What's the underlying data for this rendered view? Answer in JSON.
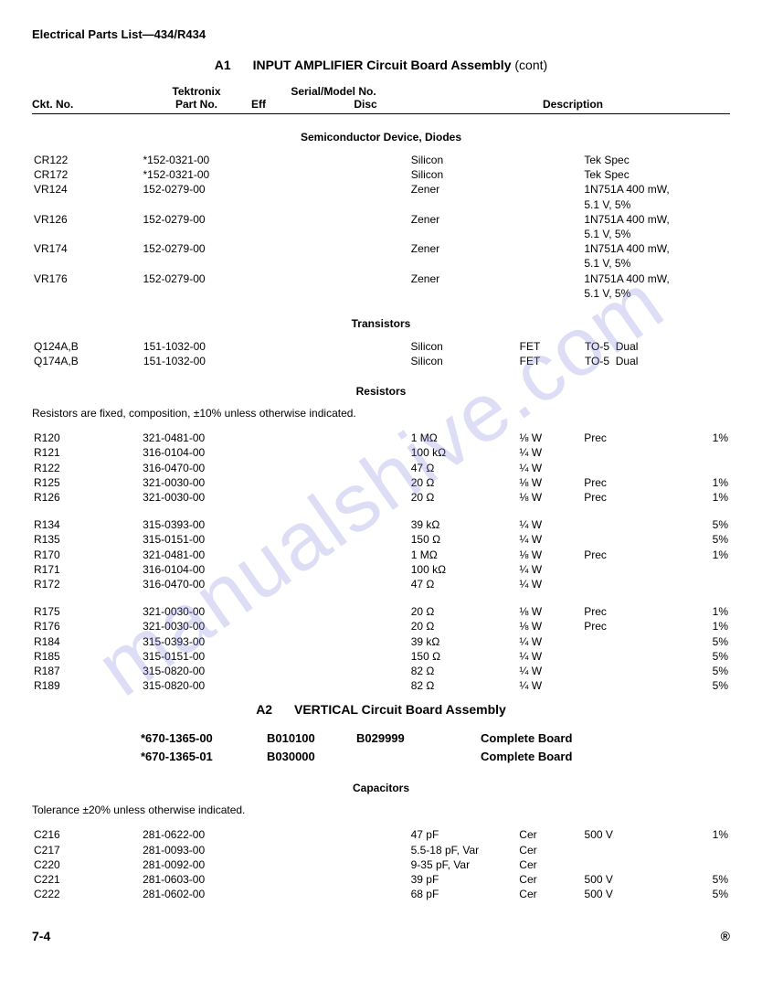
{
  "header": "Electrical Parts List—434/R434",
  "a1": {
    "code": "A1",
    "title": "INPUT AMPLIFIER Circuit Board Assembly",
    "suffix": "(cont)"
  },
  "colHeaders": {
    "ckt": "Ckt. No.",
    "partTop": "Tektronix",
    "partBot": "Part No.",
    "serialTop": "Serial/Model No.",
    "eff": "Eff",
    "disc": "Disc",
    "desc": "Description"
  },
  "sections": {
    "diodes": {
      "title": "Semiconductor Device, Diodes",
      "rows": [
        {
          "ckt": "CR122",
          "part": "*152-0321-00",
          "c3": "Silicon",
          "c4": "",
          "c5": "Tek Spec",
          "c6": ""
        },
        {
          "ckt": "CR172",
          "part": "*152-0321-00",
          "c3": "Silicon",
          "c4": "",
          "c5": "Tek Spec",
          "c6": ""
        },
        {
          "ckt": "VR124",
          "part": "152-0279-00",
          "c3": "Zener",
          "c4": "",
          "c5": "1N751A  400 mW, 5.1 V, 5%",
          "c6": ""
        },
        {
          "ckt": "VR126",
          "part": "152-0279-00",
          "c3": "Zener",
          "c4": "",
          "c5": "1N751A  400 mW, 5.1 V, 5%",
          "c6": ""
        },
        {
          "ckt": "VR174",
          "part": "152-0279-00",
          "c3": "Zener",
          "c4": "",
          "c5": "1N751A  400 mW, 5.1 V, 5%",
          "c6": ""
        },
        {
          "ckt": "VR176",
          "part": "152-0279-00",
          "c3": "Zener",
          "c4": "",
          "c5": "1N751A  400 mW, 5.1 V, 5%",
          "c6": ""
        }
      ]
    },
    "transistors": {
      "title": "Transistors",
      "rows": [
        {
          "ckt": "Q124A,B",
          "part": "151-1032-00",
          "c3": "Silicon",
          "c4": "FET",
          "c5": "TO-5  Dual",
          "c6": ""
        },
        {
          "ckt": "Q174A,B",
          "part": "151-1032-00",
          "c3": "Silicon",
          "c4": "FET",
          "c5": "TO-5  Dual",
          "c6": ""
        }
      ]
    },
    "resistors": {
      "title": "Resistors",
      "note": "Resistors are fixed, composition, ±10% unless otherwise indicated.",
      "groups": [
        [
          {
            "ckt": "R120",
            "part": "321-0481-00",
            "c3": "1 MΩ",
            "c4": "⅛ W",
            "c5": "Prec",
            "c6": "1%"
          },
          {
            "ckt": "R121",
            "part": "316-0104-00",
            "c3": "100 kΩ",
            "c4": "¼ W",
            "c5": "",
            "c6": ""
          },
          {
            "ckt": "R122",
            "part": "316-0470-00",
            "c3": "47 Ω",
            "c4": "¼ W",
            "c5": "",
            "c6": ""
          },
          {
            "ckt": "R125",
            "part": "321-0030-00",
            "c3": "20 Ω",
            "c4": "⅛ W",
            "c5": "Prec",
            "c6": "1%"
          },
          {
            "ckt": "R126",
            "part": "321-0030-00",
            "c3": "20 Ω",
            "c4": "⅛ W",
            "c5": "Prec",
            "c6": "1%"
          }
        ],
        [
          {
            "ckt": "R134",
            "part": "315-0393-00",
            "c3": "39 kΩ",
            "c4": "¼ W",
            "c5": "",
            "c6": "5%"
          },
          {
            "ckt": "R135",
            "part": "315-0151-00",
            "c3": "150 Ω",
            "c4": "¼ W",
            "c5": "",
            "c6": "5%"
          },
          {
            "ckt": "R170",
            "part": "321-0481-00",
            "c3": "1 MΩ",
            "c4": "⅛ W",
            "c5": "Prec",
            "c6": "1%"
          },
          {
            "ckt": "R171",
            "part": "316-0104-00",
            "c3": "100 kΩ",
            "c4": "¼ W",
            "c5": "",
            "c6": ""
          },
          {
            "ckt": "R172",
            "part": "316-0470-00",
            "c3": "47 Ω",
            "c4": "¼ W",
            "c5": "",
            "c6": ""
          }
        ],
        [
          {
            "ckt": "R175",
            "part": "321-0030-00",
            "c3": "20 Ω",
            "c4": "⅛ W",
            "c5": "Prec",
            "c6": "1%"
          },
          {
            "ckt": "R176",
            "part": "321-0030-00",
            "c3": "20 Ω",
            "c4": "⅛ W",
            "c5": "Prec",
            "c6": "1%"
          },
          {
            "ckt": "R184",
            "part": "315-0393-00",
            "c3": "39 kΩ",
            "c4": "¼ W",
            "c5": "",
            "c6": "5%"
          },
          {
            "ckt": "R185",
            "part": "315-0151-00",
            "c3": "150 Ω",
            "c4": "¼ W",
            "c5": "",
            "c6": "5%"
          },
          {
            "ckt": "R187",
            "part": "315-0820-00",
            "c3": "82 Ω",
            "c4": "¼ W",
            "c5": "",
            "c6": "5%"
          },
          {
            "ckt": "R189",
            "part": "315-0820-00",
            "c3": "82 Ω",
            "c4": "¼ W",
            "c5": "",
            "c6": "5%"
          }
        ]
      ]
    }
  },
  "a2": {
    "code": "A2",
    "title": "VERTICAL Circuit Board Assembly",
    "boards": [
      {
        "part": "*670-1365-00",
        "eff": "B010100",
        "disc": "B029999",
        "desc": "Complete Board"
      },
      {
        "part": "*670-1365-01",
        "eff": "B030000",
        "disc": "",
        "desc": "Complete Board"
      }
    ]
  },
  "capacitors": {
    "title": "Capacitors",
    "note": "Tolerance ±20% unless otherwise indicated.",
    "rows": [
      {
        "ckt": "C216",
        "part": "281-0622-00",
        "c3": "47 pF",
        "c4": "Cer",
        "c5": "500 V",
        "c6": "1%"
      },
      {
        "ckt": "C217",
        "part": "281-0093-00",
        "c3": "5.5-18 pF, Var",
        "c4": "Cer",
        "c5": "",
        "c6": ""
      },
      {
        "ckt": "C220",
        "part": "281-0092-00",
        "c3": "9-35 pF, Var",
        "c4": "Cer",
        "c5": "",
        "c6": ""
      },
      {
        "ckt": "C221",
        "part": "281-0603-00",
        "c3": "39 pF",
        "c4": "Cer",
        "c5": "500 V",
        "c6": "5%"
      },
      {
        "ckt": "C222",
        "part": "281-0602-00",
        "c3": "68 pF",
        "c4": "Cer",
        "c5": "500 V",
        "c6": "5%"
      }
    ]
  },
  "footer": {
    "left": "7-4",
    "right": "®"
  },
  "watermark": "manualshive.com",
  "columnWidths": {
    "ckt": 120,
    "part": 140,
    "serial": 160,
    "c3": 120,
    "c4": 70,
    "c5": 110,
    "c6": 50
  }
}
